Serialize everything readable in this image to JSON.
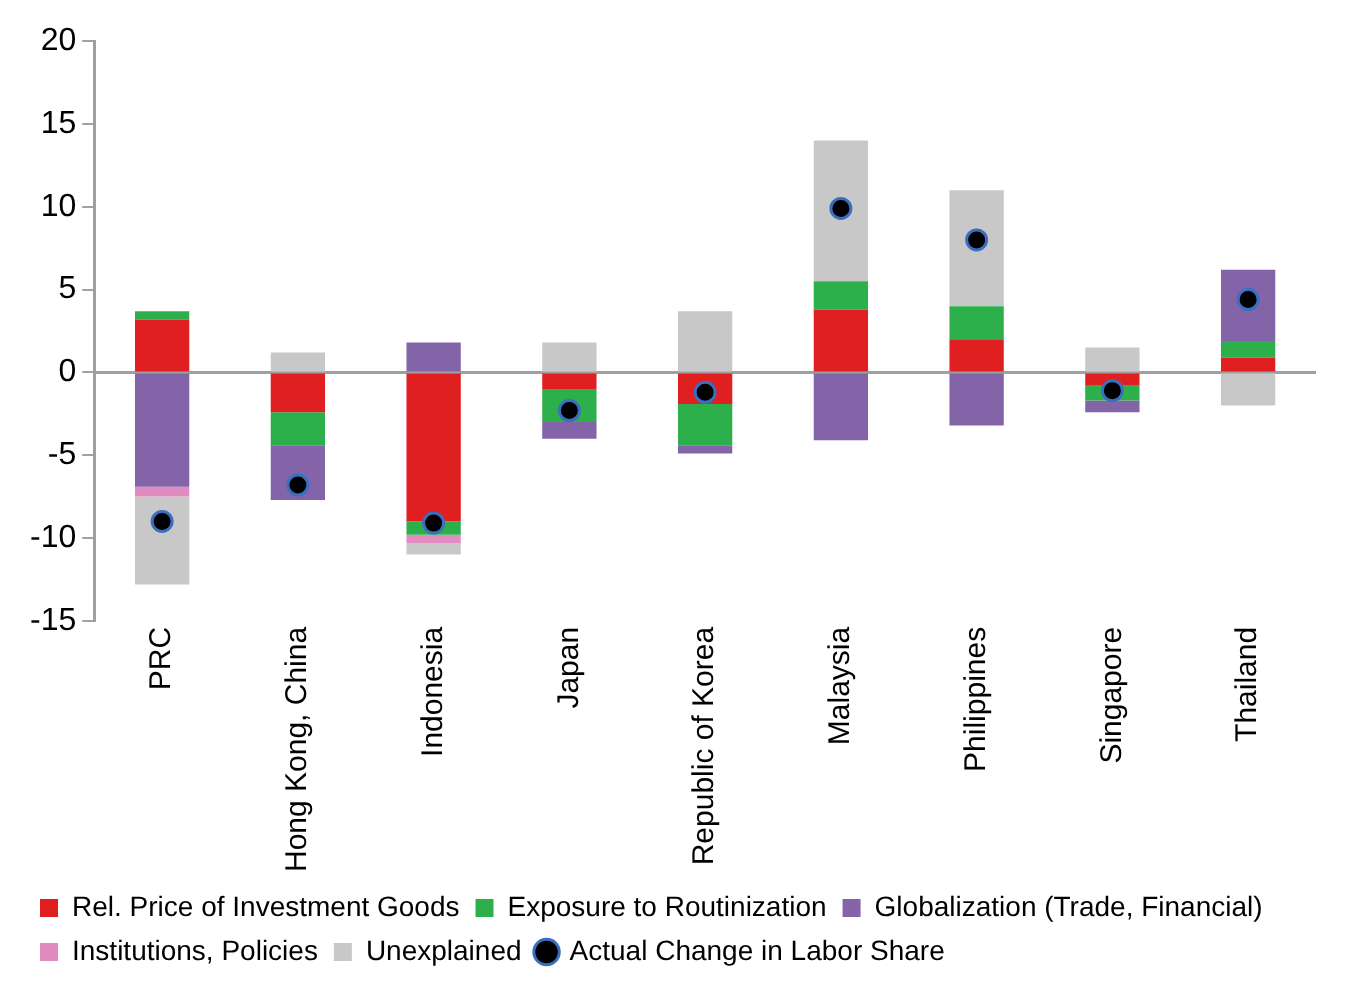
{
  "chart_data": {
    "type": "bar",
    "stacked": true,
    "categories": [
      "PRC",
      "Hong Kong, China",
      "Indonesia",
      "Japan",
      "Republic of Korea",
      "Malaysia",
      "Philippines",
      "Singapore",
      "Thailand"
    ],
    "series": [
      {
        "name": "Rel. Price of Investment Goods",
        "color": "#e02020",
        "values": [
          3.2,
          -2.4,
          -9.0,
          -1.0,
          -1.9,
          3.8,
          2.0,
          -0.8,
          0.9
        ]
      },
      {
        "name": "Exposure to Routinization",
        "color": "#2db04b",
        "values": [
          0.5,
          -2.0,
          -0.8,
          -2.0,
          -2.5,
          1.7,
          2.0,
          -0.9,
          1.0
        ]
      },
      {
        "name": "Globalization (Trade, Financial)",
        "color": "#8464a8",
        "values": [
          -6.9,
          -3.3,
          1.8,
          -1.0,
          -0.5,
          -4.1,
          -3.2,
          -0.7,
          4.3
        ]
      },
      {
        "name": "Institutions, Policies",
        "color": "#e08cc0",
        "values": [
          -0.6,
          null,
          -0.5,
          null,
          null,
          null,
          null,
          null,
          null
        ]
      },
      {
        "name": "Unexplained",
        "color": "#c8c8c8",
        "values": [
          -5.3,
          1.2,
          -0.7,
          1.8,
          3.7,
          8.5,
          7.0,
          1.5,
          -2.0
        ]
      },
      {
        "name": "Actual Change in Labor Share",
        "type": "scatter",
        "color": "#000000",
        "x": [
          "PRC",
          "Hong Kong, China",
          "Indonesia",
          "Japan",
          "Republic of Korea",
          "Malaysia",
          "Philippines",
          "Singapore",
          "Thailand"
        ],
        "values": [
          -9.0,
          -6.8,
          -9.1,
          -2.3,
          -1.2,
          9.9,
          8.0,
          -1.1,
          4.4
        ]
      }
    ],
    "ylim": [
      -15,
      20
    ],
    "yticks": [
      -15,
      -10,
      -5,
      0,
      5,
      10,
      15,
      20
    ],
    "ref_lines": [
      {
        "axis": "y",
        "value": 0,
        "color": "#a0a0a0"
      }
    ],
    "grid": false,
    "legend": "bottom",
    "marker": "circle"
  }
}
